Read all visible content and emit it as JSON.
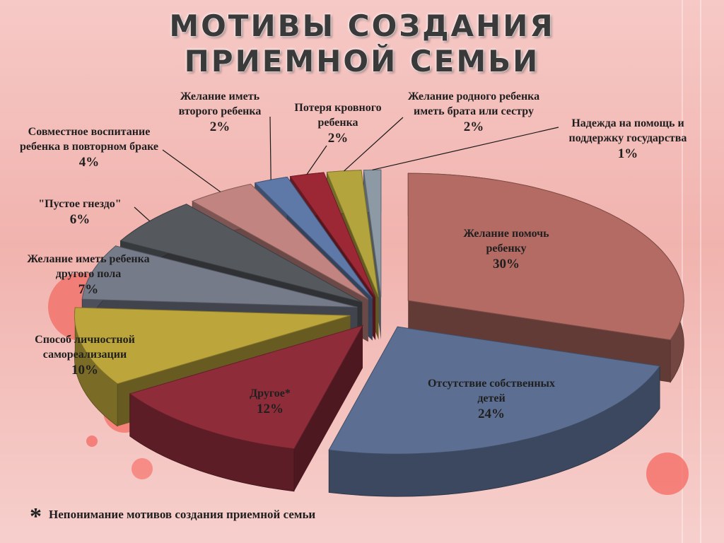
{
  "slide": {
    "title": "МОТИВЫ СОЗДАНИЯ\nПРИЕМНОЙ СЕМЬИ",
    "footnote_mark": "*",
    "footnote_text": "Непонимание мотивов создания приемной семьи"
  },
  "chart_data": {
    "type": "pie",
    "title": "МОТИВЫ СОЗДАНИЯ ПРИЕМНОЙ СЕМЬИ",
    "unit": "%",
    "slices": [
      {
        "label": "Желание помочь ребенку",
        "value": 30,
        "display": "30%",
        "color": "#b36b64"
      },
      {
        "label": "Отсутствие собственных детей",
        "value": 24,
        "display": "24%",
        "color": "#5c6f92"
      },
      {
        "label": "Другое*",
        "value": 12,
        "display": "12%",
        "color": "#8e2c3a"
      },
      {
        "label": "Способ личностной самореализации",
        "value": 10,
        "display": "10%",
        "color": "#bca63c"
      },
      {
        "label": "Желание иметь ребенка другого пола",
        "value": 7,
        "display": "7%",
        "color": "#767b8a"
      },
      {
        "label": "\"Пустое гнездо\"",
        "value": 6,
        "display": "6%",
        "color": "#55595e"
      },
      {
        "label": "Совместное воспитание ребенка в повторном браке",
        "value": 4,
        "display": "4%",
        "color": "#c18480"
      },
      {
        "label": "Желание иметь второго ребенка",
        "value": 2,
        "display": "2%",
        "color": "#5e79a8"
      },
      {
        "label": "Потеря кровного ребенка",
        "value": 2,
        "display": "2%",
        "color": "#9c2735"
      },
      {
        "label": "Желание родного ребенка иметь брата или сестру",
        "value": 2,
        "display": "2%",
        "color": "#b3a43d"
      },
      {
        "label": "Надежда на помощь и поддержку государства",
        "value": 1,
        "display": "1%",
        "color": "#8d9aa6"
      }
    ],
    "legend": "none",
    "data_labels": "outside with leader lines for small slices"
  }
}
